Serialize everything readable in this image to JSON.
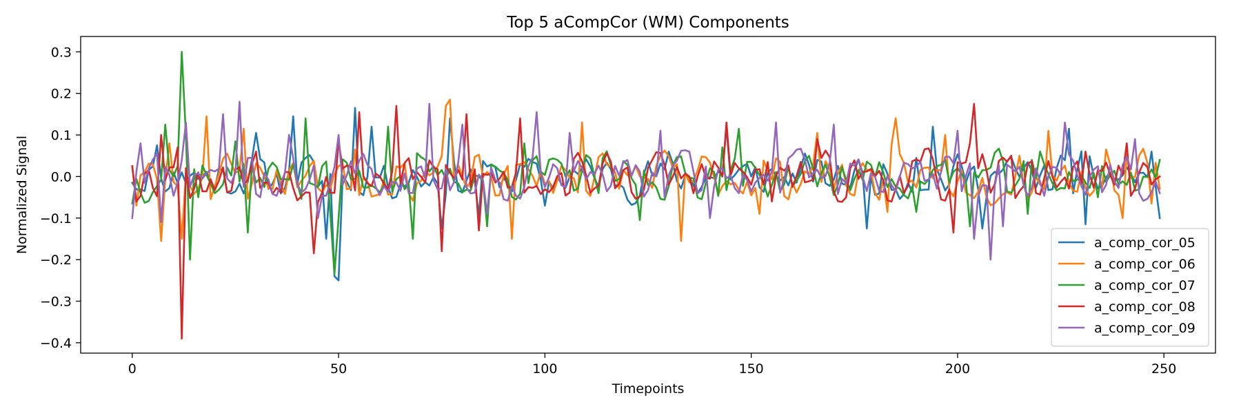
{
  "chart_data": {
    "type": "line",
    "title": "Top 5 aCompCor (WM) Components",
    "xlabel": "Timepoints",
    "ylabel": "Normalized Signal",
    "xlim": [
      -12.5,
      262.5
    ],
    "ylim": [
      -0.425,
      0.337
    ],
    "xticks": [
      0,
      50,
      100,
      150,
      200,
      250
    ],
    "xtick_labels": [
      "0",
      "50",
      "100",
      "150",
      "200",
      "250"
    ],
    "yticks": [
      -0.4,
      -0.3,
      -0.2,
      -0.1,
      0.0,
      0.1,
      0.2,
      0.3
    ],
    "ytick_labels": [
      "−0.4",
      "−0.3",
      "−0.2",
      "−0.1",
      "0.0",
      "0.1",
      "0.2",
      "0.3"
    ],
    "grid": false,
    "legend_position": "lower-right",
    "n_points": 250,
    "series": [
      {
        "name": "a_comp_cor_05",
        "color": "#1f77b4",
        "seed": 11,
        "amp": 0.045,
        "keypoints": [
          [
            0,
            -0.015
          ],
          [
            6,
            0.075
          ],
          [
            12,
            0.01
          ],
          [
            30,
            0.105
          ],
          [
            39,
            0.145
          ],
          [
            44,
            0.035
          ],
          [
            47,
            -0.15
          ],
          [
            49,
            -0.24
          ],
          [
            50,
            -0.25
          ],
          [
            54,
            0.165
          ],
          [
            58,
            0.12
          ],
          [
            75,
            -0.125
          ],
          [
            77,
            0.14
          ],
          [
            84,
            -0.095
          ],
          [
            100,
            -0.07
          ],
          [
            130,
            0.06
          ],
          [
            144,
            0.12
          ],
          [
            150,
            0.0
          ],
          [
            178,
            -0.125
          ],
          [
            190,
            0.045
          ],
          [
            194,
            0.12
          ],
          [
            206,
            -0.125
          ],
          [
            227,
            0.115
          ],
          [
            231,
            -0.115
          ],
          [
            247,
            0.06
          ],
          [
            249,
            -0.1
          ]
        ]
      },
      {
        "name": "a_comp_cor_06",
        "color": "#ff7f0e",
        "seed": 23,
        "amp": 0.05,
        "keypoints": [
          [
            0,
            0.025
          ],
          [
            1,
            -0.07
          ],
          [
            7,
            -0.155
          ],
          [
            9,
            0.08
          ],
          [
            12,
            -0.15
          ],
          [
            18,
            0.145
          ],
          [
            27,
            0.115
          ],
          [
            54,
            0.065
          ],
          [
            76,
            0.17
          ],
          [
            77,
            0.185
          ],
          [
            92,
            -0.15
          ],
          [
            109,
            0.13
          ],
          [
            133,
            -0.155
          ],
          [
            152,
            -0.09
          ],
          [
            166,
            0.105
          ],
          [
            183,
            -0.085
          ],
          [
            185,
            0.14
          ],
          [
            197,
            0.1
          ],
          [
            215,
            0.05
          ],
          [
            222,
            0.11
          ],
          [
            236,
            0.065
          ],
          [
            240,
            -0.1
          ],
          [
            247,
            -0.065
          ],
          [
            249,
            -0.03
          ]
        ]
      },
      {
        "name": "a_comp_cor_07",
        "color": "#2ca02c",
        "seed": 37,
        "amp": 0.045,
        "keypoints": [
          [
            0,
            -0.065
          ],
          [
            8,
            0.125
          ],
          [
            11,
            0.025
          ],
          [
            12,
            0.3
          ],
          [
            13,
            0.1
          ],
          [
            14,
            -0.2
          ],
          [
            16,
            -0.05
          ],
          [
            25,
            0.085
          ],
          [
            28,
            -0.135
          ],
          [
            42,
            0.14
          ],
          [
            48,
            -0.09
          ],
          [
            49,
            -0.235
          ],
          [
            50,
            -0.1
          ],
          [
            62,
            0.12
          ],
          [
            68,
            -0.15
          ],
          [
            86,
            -0.12
          ],
          [
            95,
            0.08
          ],
          [
            113,
            -0.04
          ],
          [
            123,
            -0.105
          ],
          [
            143,
            0.07
          ],
          [
            147,
            0.115
          ],
          [
            150,
            0.035
          ],
          [
            190,
            -0.085
          ],
          [
            197,
            0.04
          ],
          [
            203,
            -0.12
          ],
          [
            217,
            -0.09
          ],
          [
            220,
            0.06
          ],
          [
            234,
            -0.05
          ],
          [
            249,
            0.04
          ]
        ]
      },
      {
        "name": "a_comp_cor_08",
        "color": "#d62728",
        "seed": 53,
        "amp": 0.05,
        "keypoints": [
          [
            0,
            0.025
          ],
          [
            7,
            0.1
          ],
          [
            11,
            0.07
          ],
          [
            12,
            -0.39
          ],
          [
            13,
            0.02
          ],
          [
            30,
            0.06
          ],
          [
            44,
            -0.185
          ],
          [
            50,
            0.085
          ],
          [
            55,
            0.155
          ],
          [
            64,
            0.17
          ],
          [
            75,
            -0.18
          ],
          [
            81,
            0.15
          ],
          [
            84,
            -0.13
          ],
          [
            94,
            0.14
          ],
          [
            144,
            0.13
          ],
          [
            155,
            -0.06
          ],
          [
            166,
            0.09
          ],
          [
            199,
            -0.135
          ],
          [
            203,
            0.08
          ],
          [
            204,
            0.175
          ],
          [
            205,
            0.02
          ],
          [
            213,
            0.05
          ],
          [
            231,
            0.06
          ],
          [
            241,
            0.08
          ],
          [
            249,
            0.0
          ]
        ]
      },
      {
        "name": "a_comp_cor_09",
        "color": "#9467bd",
        "seed": 71,
        "amp": 0.05,
        "keypoints": [
          [
            0,
            -0.1
          ],
          [
            2,
            0.08
          ],
          [
            7,
            -0.11
          ],
          [
            13,
            0.13
          ],
          [
            22,
            0.15
          ],
          [
            26,
            0.18
          ],
          [
            38,
            0.1
          ],
          [
            45,
            -0.1
          ],
          [
            50,
            0.1
          ],
          [
            72,
            0.175
          ],
          [
            80,
            0.125
          ],
          [
            86,
            -0.09
          ],
          [
            98,
            0.155
          ],
          [
            106,
            0.105
          ],
          [
            128,
            0.11
          ],
          [
            140,
            -0.1
          ],
          [
            156,
            0.13
          ],
          [
            170,
            0.125
          ],
          [
            186,
            0.0
          ],
          [
            200,
            0.11
          ],
          [
            204,
            -0.15
          ],
          [
            208,
            -0.2
          ],
          [
            211,
            -0.12
          ],
          [
            226,
            0.13
          ],
          [
            243,
            0.09
          ],
          [
            249,
            -0.04
          ]
        ]
      }
    ]
  }
}
